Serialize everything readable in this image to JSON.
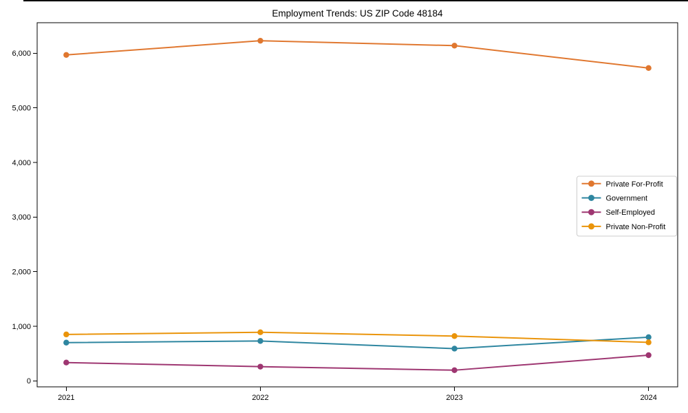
{
  "figure": {
    "background": "#ffffff",
    "spine_color": "#000000",
    "legend_border_color": "#cccccc",
    "legend_background": "#ffffff"
  },
  "chart_data": {
    "type": "line",
    "title": "Employment Trends: US ZIP Code 48184",
    "xlabel": "",
    "ylabel": "",
    "x": [
      2021,
      2022,
      2023,
      2024
    ],
    "xtick_labels": [
      "2021",
      "2022",
      "2023",
      "2024"
    ],
    "yticks": [
      0,
      1000,
      2000,
      3000,
      4000,
      5000,
      6000
    ],
    "ytick_labels": [
      "0",
      "1,000",
      "2,000",
      "3,000",
      "4,000",
      "5,000",
      "6,000"
    ],
    "xlim": [
      2020.85,
      2024.15
    ],
    "ylim": [
      -110,
      6560
    ],
    "grid": false,
    "legend_position": "center right",
    "marker": "circle",
    "series": [
      {
        "name": "Private For-Profit",
        "color": "#e0772f",
        "values": [
          5970,
          6230,
          6140,
          5730
        ]
      },
      {
        "name": "Government",
        "color": "#2e86a0",
        "values": [
          700,
          730,
          590,
          800
        ]
      },
      {
        "name": "Self-Employed",
        "color": "#9e3671",
        "values": [
          335,
          260,
          195,
          470
        ]
      },
      {
        "name": "Private Non-Profit",
        "color": "#ea940a",
        "values": [
          850,
          890,
          820,
          705
        ]
      }
    ]
  }
}
